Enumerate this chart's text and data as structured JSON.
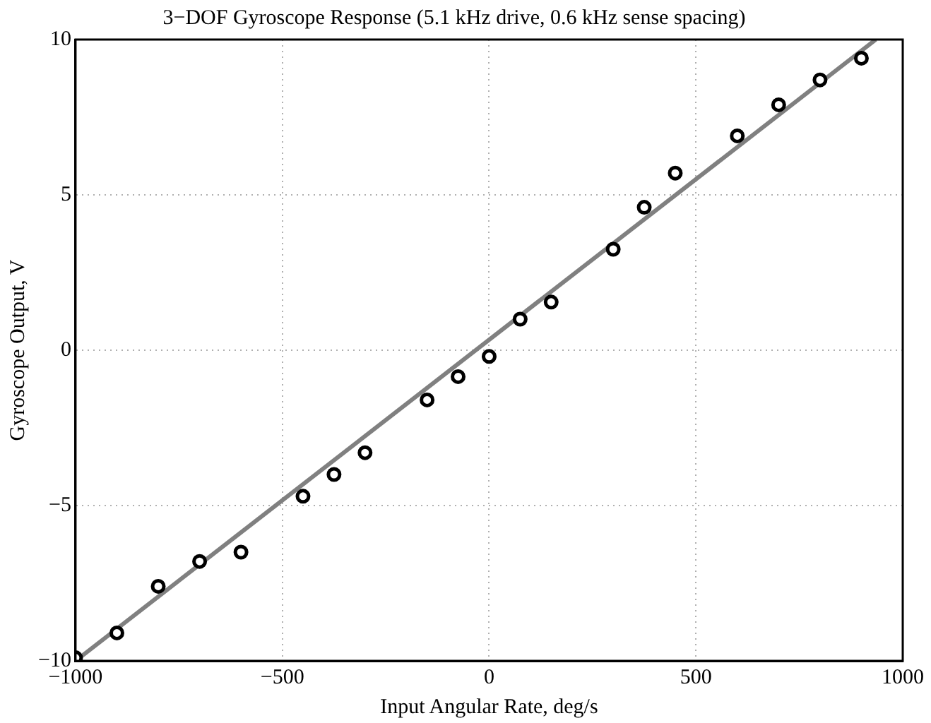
{
  "chart_data": {
    "type": "scatter",
    "title": "3−DOF Gyroscope Response (5.1 kHz drive, 0.6 kHz sense spacing)",
    "xlabel": "Input Angular Rate, deg/s",
    "ylabel": "Gyroscope Output, V",
    "series": [
      {
        "color": "#000000",
        "marker": "circle",
        "x": [
          -1000,
          -900,
          -800,
          -700,
          -600,
          -450,
          -375,
          -300,
          -150,
          -75,
          0,
          75,
          150,
          300,
          375,
          450,
          600,
          700,
          800,
          900
        ],
        "values": [
          -9.9,
          -9.1,
          -7.6,
          -6.8,
          -6.5,
          -4.7,
          -4.0,
          -3.3,
          -1.6,
          -0.85,
          -0.2,
          1.0,
          1.55,
          3.25,
          4.6,
          5.7,
          6.9,
          7.9,
          8.7,
          9.4
        ]
      },
      {
        "type": "line",
        "color": "#808080",
        "marker": "none",
        "x": [
          -1000,
          935
        ],
        "values": [
          -10,
          10
        ]
      }
    ],
    "xlim": [
      -1000,
      1000
    ],
    "ylim": [
      -10,
      10
    ],
    "xticks": [
      {
        "value": -1000,
        "label": "−1000"
      },
      {
        "value": -500,
        "label": "−500"
      },
      0,
      500,
      1000
    ],
    "yticks": [
      {
        "value": -10,
        "label": "−10"
      },
      {
        "value": -5,
        "label": "−5"
      },
      0,
      5,
      10
    ],
    "grid": true,
    "legend": false
  }
}
